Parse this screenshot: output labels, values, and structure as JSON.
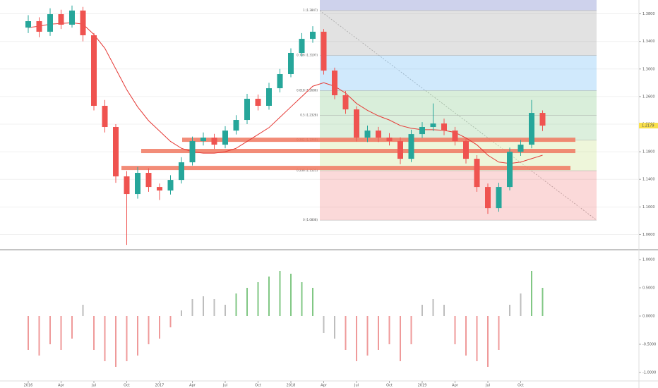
{
  "chart_data": [
    {
      "type": "candlestick",
      "open": [
        1.36,
        1.3693,
        1.354,
        1.3795,
        1.3642,
        1.3847,
        1.3489,
        1.2466,
        1.2159,
        1.1443,
        1.1187,
        1.1494,
        1.1289,
        1.1238,
        1.1391,
        1.1647,
        1.1954,
        1.2005,
        1.1903,
        1.2107,
        1.2261,
        1.2568,
        1.2466,
        1.2721,
        1.2926,
        1.3233,
        1.3437,
        1.354,
        1.2977,
        1.2619,
        1.2414,
        1.2005,
        1.2107,
        1.2005,
        1.1954,
        1.1698,
        1.2056,
        1.2159,
        1.221,
        1.2107,
        1.1954,
        1.1698,
        1.1289,
        1.0982,
        1.1289,
        1.18,
        1.1903,
        1.2363
      ],
      "high": [
        1.378,
        1.375,
        1.388,
        1.386,
        1.392,
        1.39,
        1.352,
        1.255,
        1.22,
        1.152,
        1.158,
        1.156,
        1.134,
        1.146,
        1.172,
        1.202,
        1.208,
        1.206,
        1.217,
        1.233,
        1.264,
        1.263,
        1.28,
        1.3,
        1.33,
        1.352,
        1.362,
        1.358,
        1.302,
        1.268,
        1.246,
        1.218,
        1.216,
        1.207,
        1.201,
        1.212,
        1.223,
        1.25,
        1.228,
        1.216,
        1.201,
        1.175,
        1.134,
        1.135,
        1.186,
        1.197,
        1.255,
        1.24
      ],
      "low": [
        1.352,
        1.346,
        1.348,
        1.358,
        1.36,
        1.34,
        1.24,
        1.208,
        1.135,
        1.045,
        1.112,
        1.122,
        1.11,
        1.118,
        1.134,
        1.16,
        1.189,
        1.184,
        1.185,
        1.205,
        1.22,
        1.24,
        1.241,
        1.266,
        1.288,
        1.318,
        1.338,
        1.292,
        1.256,
        1.235,
        1.195,
        1.194,
        1.194,
        1.189,
        1.162,
        1.165,
        1.2,
        1.21,
        1.204,
        1.189,
        1.163,
        1.122,
        1.09,
        1.093,
        1.124,
        1.174,
        1.185,
        1.21
      ],
      "close": [
        1.3693,
        1.354,
        1.3795,
        1.3642,
        1.3847,
        1.3489,
        1.2466,
        1.2159,
        1.1443,
        1.1187,
        1.1494,
        1.1289,
        1.1238,
        1.1391,
        1.1647,
        1.1954,
        1.2005,
        1.1903,
        1.2107,
        1.2261,
        1.2568,
        1.2466,
        1.2721,
        1.2926,
        1.3233,
        1.3437,
        1.354,
        1.2977,
        1.2619,
        1.2414,
        1.2005,
        1.2107,
        1.2005,
        1.1954,
        1.1698,
        1.2056,
        1.2159,
        1.221,
        1.2107,
        1.1954,
        1.1698,
        1.1289,
        1.0982,
        1.1289,
        1.18,
        1.1903,
        1.2363,
        1.2179
      ],
      "up_color": "#26a69a",
      "down_color": "#ef5350",
      "ma": {
        "color": "#e53935",
        "values": [
          1.36,
          1.362,
          1.365,
          1.366,
          1.367,
          1.365,
          1.35,
          1.33,
          1.3,
          1.27,
          1.245,
          1.225,
          1.21,
          1.195,
          1.185,
          1.18,
          1.178,
          1.178,
          1.18,
          1.185,
          1.195,
          1.205,
          1.215,
          1.23,
          1.245,
          1.26,
          1.275,
          1.28,
          1.275,
          1.265,
          1.25,
          1.24,
          1.232,
          1.226,
          1.218,
          1.214,
          1.212,
          1.212,
          1.211,
          1.208,
          1.2,
          1.19,
          1.175,
          1.165,
          1.163,
          1.165,
          1.17,
          1.175
        ]
      },
      "fib": {
        "levels": [
          {
            "value": 1.0808,
            "label": "0 (1.0808)"
          },
          {
            "value": 1.1525,
            "label": "0.236 (1.1525)"
          },
          {
            "value": 1.1969,
            "label": "0.382 (1.1969)"
          },
          {
            "value": 1.2328,
            "label": "0.5 (1.2328)"
          },
          {
            "value": 1.2686,
            "label": "0.618 (1.2686)"
          },
          {
            "value": 1.3197,
            "label": "0.786 (1.3197)"
          },
          {
            "value": 1.3847,
            "label": "1 (1.3847)"
          }
        ],
        "colors": [
          "rgba(239,83,80,0.22)",
          "rgba(205,230,150,0.35)",
          "rgba(129,199,132,0.28)",
          "rgba(129,199,132,0.3)",
          "rgba(100,181,246,0.3)",
          "rgba(158,158,158,0.3)",
          "rgba(92,107,192,0.3)"
        ]
      },
      "zones": {
        "color": "#f07860",
        "values": [
          1.1974,
          1.1811,
          1.1565
        ]
      },
      "ylim": [
        1.04,
        1.4
      ],
      "yticks": [
        {
          "value": 1.06,
          "label": "1.0600"
        },
        {
          "value": 1.1,
          "label": "1.1000"
        },
        {
          "value": 1.14,
          "label": "1.1400"
        },
        {
          "value": 1.18,
          "label": "1.1800"
        },
        {
          "value": 1.22,
          "label": "1.2200"
        },
        {
          "value": 1.26,
          "label": "1.2600"
        },
        {
          "value": 1.3,
          "label": "1.3000"
        },
        {
          "value": 1.34,
          "label": "1.3400"
        },
        {
          "value": 1.38,
          "label": "1.3800"
        }
      ],
      "grid": true
    },
    {
      "type": "bar",
      "values": [
        -0.6,
        -0.7,
        -0.5,
        -0.6,
        -0.4,
        0.2,
        -0.6,
        -0.8,
        -0.9,
        -0.8,
        -0.7,
        -0.5,
        -0.4,
        -0.2,
        0.1,
        0.3,
        0.35,
        0.3,
        0.2,
        0.4,
        0.5,
        0.6,
        0.7,
        0.8,
        0.75,
        0.6,
        0.5,
        -0.3,
        -0.4,
        -0.6,
        -0.8,
        -0.7,
        -0.6,
        -0.5,
        -0.8,
        -0.5,
        0.2,
        0.3,
        0.2,
        -0.5,
        -0.7,
        -0.8,
        -0.9,
        -0.6,
        0.2,
        0.4,
        0.8,
        0.5
      ],
      "colors": [
        "#ef9a9a",
        "#ef9a9a",
        "#ef9a9a",
        "#ef9a9a",
        "#ef9a9a",
        "#bdbdbd",
        "#ef9a9a",
        "#ef9a9a",
        "#ef9a9a",
        "#ef9a9a",
        "#ef9a9a",
        "#ef9a9a",
        "#ef9a9a",
        "#ef9a9a",
        "#bdbdbd",
        "#bdbdbd",
        "#bdbdbd",
        "#bdbdbd",
        "#bdbdbd",
        "#81c784",
        "#81c784",
        "#81c784",
        "#81c784",
        "#81c784",
        "#81c784",
        "#81c784",
        "#81c784",
        "#bdbdbd",
        "#bdbdbd",
        "#ef9a9a",
        "#ef9a9a",
        "#ef9a9a",
        "#ef9a9a",
        "#ef9a9a",
        "#ef9a9a",
        "#ef9a9a",
        "#bdbdbd",
        "#bdbdbd",
        "#bdbdbd",
        "#ef9a9a",
        "#ef9a9a",
        "#ef9a9a",
        "#ef9a9a",
        "#ef9a9a",
        "#bdbdbd",
        "#bdbdbd",
        "#81c784",
        "#81c784"
      ],
      "ylim": [
        -1.1,
        1.1
      ],
      "yticks": [
        {
          "value": -1,
          "label": "-1.0000"
        },
        {
          "value": -0.5,
          "label": "-0.5000"
        },
        {
          "value": 0,
          "label": "0.0000"
        },
        {
          "value": 0.5,
          "label": "0.5000"
        },
        {
          "value": 1,
          "label": "1.0000"
        }
      ],
      "xticks": [
        {
          "value": 0,
          "label": "2016"
        },
        {
          "value": 3,
          "label": "Apr"
        },
        {
          "value": 6,
          "label": "Jul"
        },
        {
          "value": 9,
          "label": "Oct"
        },
        {
          "value": 12,
          "label": "2017"
        },
        {
          "value": 15,
          "label": "Apr"
        },
        {
          "value": 18,
          "label": "Jul"
        },
        {
          "value": 21,
          "label": "Oct"
        },
        {
          "value": 24,
          "label": "2018"
        },
        {
          "value": 27,
          "label": "Apr"
        },
        {
          "value": 30,
          "label": "Jul"
        },
        {
          "value": 33,
          "label": "Oct"
        },
        {
          "value": 36,
          "label": "2019"
        },
        {
          "value": 39,
          "label": "Apr"
        },
        {
          "value": 42,
          "label": "Jul"
        },
        {
          "value": 45,
          "label": "Oct"
        }
      ]
    }
  ]
}
